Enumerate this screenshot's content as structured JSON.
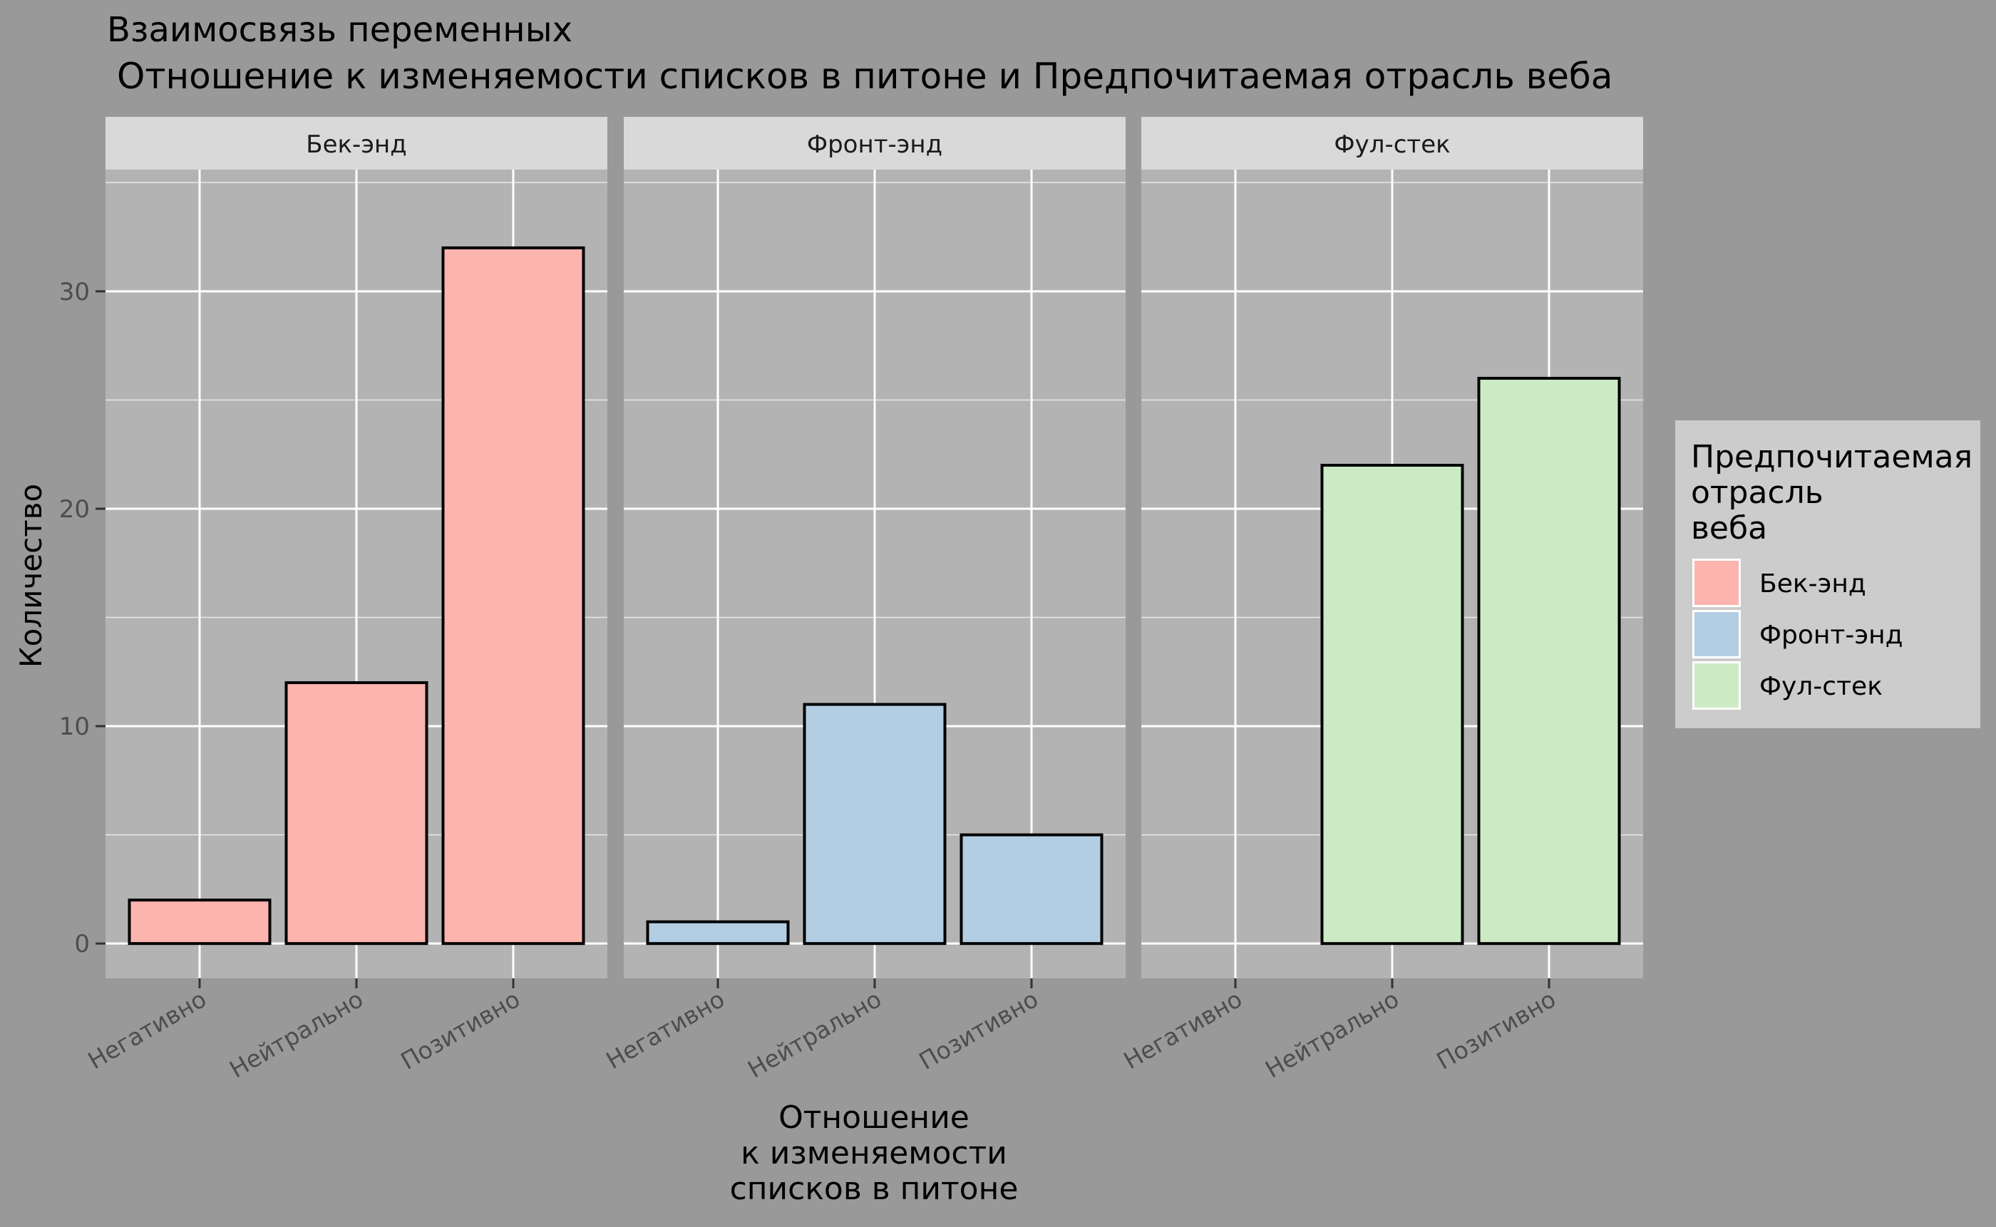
{
  "chart_data": {
    "type": "bar",
    "title": "Взаимосвязь переменных",
    "subtitle": "Отношение к изменяемости списков в питоне и Предпочитаемая отрасль веба",
    "xlabel": [
      "Отношение",
      "к изменяемости",
      "списков в питоне"
    ],
    "ylabel": "Количество",
    "ylim": [
      -1.6,
      35.6
    ],
    "yticks": [
      0,
      10,
      20,
      30
    ],
    "categories": [
      "Негативно",
      "Нейтрально",
      "Позитивно"
    ],
    "facets": [
      {
        "label": "Бек-энд",
        "values": [
          2,
          12,
          32
        ]
      },
      {
        "label": "Фронт-энд",
        "values": [
          1,
          11,
          5
        ]
      },
      {
        "label": "Фул-стек",
        "values": [
          null,
          22,
          26
        ]
      }
    ],
    "legend": {
      "title": [
        "Предпочитаемая",
        "отрасль",
        "веба"
      ],
      "placement": "right",
      "entries": [
        "Бек-энд",
        "Фронт-энд",
        "Фул-стек"
      ]
    },
    "colors": {
      "Бек-энд": "#fbb4ae",
      "Фронт-энд": "#b3cde3",
      "Фул-стек": "#ccebc5",
      "panel": "#b3b3b3",
      "strip": "#d9d9d9",
      "background": "#999999",
      "grid": "#ffffff",
      "legend_bg": "#cccccc"
    },
    "grid": true
  }
}
